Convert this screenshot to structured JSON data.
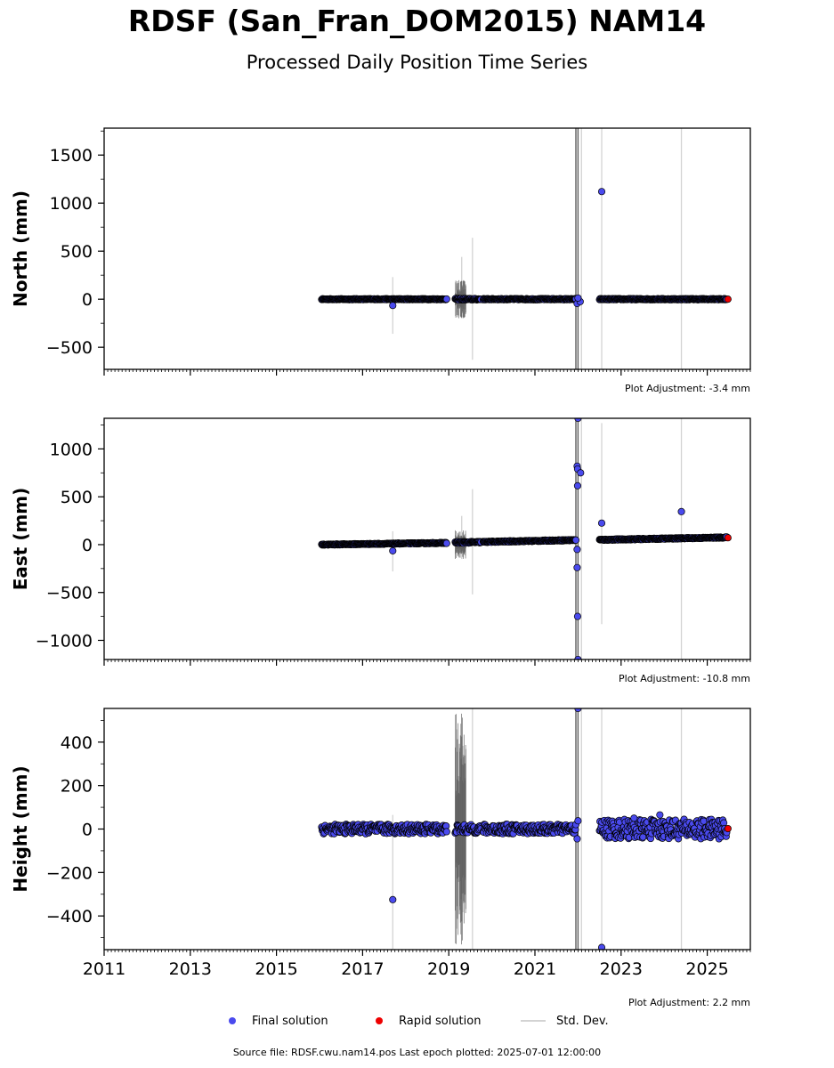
{
  "title": "RDSF (San_Fran_DOM2015) NAM14",
  "subtitle": "Processed Daily Position Time Series",
  "legend": {
    "final_label": "Final solution",
    "rapid_label": "Rapid solution",
    "std_label": "Std. Dev."
  },
  "colors": {
    "final": "#4a4aee",
    "rapid": "#ee0000",
    "std": "#d3d3d3",
    "std_dark": "#606060",
    "marker_edge": "#000000"
  },
  "footer": "Source file: RDSF.cwu.nam14.pos  Last epoch plotted: 2025-07-01 12:00:00",
  "chart_data": [
    {
      "type": "scatter",
      "ylabel": "North (mm)",
      "adjustment": "Plot Adjustment: -3.4 mm",
      "xlim": [
        2011,
        2026
      ],
      "ylim": [
        -730,
        1780
      ],
      "yticks": [
        -500,
        0,
        500,
        1000,
        1500
      ],
      "ytick_labels": [
        "−500",
        "0",
        "500",
        "1000",
        "1500"
      ],
      "xticks": [
        2011,
        2013,
        2015,
        2017,
        2019,
        2021,
        2023,
        2025
      ],
      "xtick_labels": [],
      "series": [
        {
          "name": "Final solution",
          "segments": [
            {
              "x_start": 2016.05,
              "x_end": 2018.95,
              "y_start": 0,
              "y_end": 0,
              "spread": 5
            },
            {
              "x_start": 2019.15,
              "x_end": 2019.75,
              "y_start": 0,
              "y_end": 0,
              "spread": 8
            },
            {
              "x_start": 2019.8,
              "x_end": 2021.95,
              "y_start": 0,
              "y_end": 0,
              "spread": 6
            },
            {
              "x_start": 2022.5,
              "x_end": 2025.45,
              "y_start": 0,
              "y_end": 0,
              "spread": 6
            }
          ],
          "outliers": [
            [
              2017.7,
              -65
            ],
            [
              2022.55,
              1120
            ],
            [
              2021.98,
              -45
            ],
            [
              2022.05,
              -25
            ],
            [
              2022.0,
              12
            ]
          ]
        },
        {
          "name": "Rapid solution",
          "points": [
            [
              2025.48,
              0
            ]
          ]
        }
      ],
      "std_dev": {
        "light": [
          [
            2017.7,
            230,
            -360
          ],
          [
            2019.55,
            640,
            -630
          ],
          [
            2019.3,
            440,
            -200
          ],
          [
            2022.08,
            1780,
            -730
          ],
          [
            2022.55,
            1780,
            -730
          ],
          [
            2024.4,
            1780,
            -730
          ]
        ],
        "dark": [
          [
            2021.95,
            1780,
            -730
          ],
          [
            2022.0,
            1780,
            -730
          ]
        ],
        "cluster": [
          [
            2019.15,
            2019.4,
            200
          ]
        ]
      }
    },
    {
      "type": "scatter",
      "ylabel": "East (mm)",
      "adjustment": "Plot Adjustment: -10.8 mm",
      "xlim": [
        2011,
        2026
      ],
      "ylim": [
        -1200,
        1320
      ],
      "yticks": [
        -1000,
        -500,
        0,
        500,
        1000
      ],
      "ytick_labels": [
        "−1000",
        "−500",
        "0",
        "500",
        "1000"
      ],
      "xticks": [
        2011,
        2013,
        2015,
        2017,
        2019,
        2021,
        2023,
        2025
      ],
      "xtick_labels": [],
      "series": [
        {
          "name": "Final solution",
          "segments": [
            {
              "x_start": 2016.05,
              "x_end": 2018.95,
              "y_start": 0,
              "y_end": 18,
              "spread": 5
            },
            {
              "x_start": 2019.15,
              "x_end": 2019.75,
              "y_start": 22,
              "y_end": 26,
              "spread": 8
            },
            {
              "x_start": 2019.8,
              "x_end": 2021.95,
              "y_start": 28,
              "y_end": 48,
              "spread": 6
            },
            {
              "x_start": 2022.5,
              "x_end": 2025.45,
              "y_start": 50,
              "y_end": 75,
              "spread": 6
            }
          ],
          "outliers": [
            [
              2017.7,
              -65
            ],
            [
              2022.55,
              225
            ],
            [
              2024.4,
              345
            ],
            [
              2021.98,
              820
            ],
            [
              2021.99,
              790
            ],
            [
              2022.06,
              750
            ],
            [
              2021.99,
              615
            ],
            [
              2021.98,
              -50
            ],
            [
              2021.98,
              -240
            ],
            [
              2021.99,
              -750
            ],
            [
              2022.0,
              1320
            ],
            [
              2022.0,
              -1200
            ]
          ]
        },
        {
          "name": "Rapid solution",
          "points": [
            [
              2025.48,
              72
            ]
          ]
        }
      ],
      "std_dev": {
        "light": [
          [
            2017.7,
            140,
            -280
          ],
          [
            2019.55,
            580,
            -520
          ],
          [
            2019.3,
            300,
            -150
          ],
          [
            2022.08,
            1320,
            -1200
          ],
          [
            2022.55,
            1270,
            -830
          ],
          [
            2024.4,
            1320,
            -1200
          ]
        ],
        "dark": [
          [
            2021.95,
            1320,
            -1200
          ],
          [
            2022.0,
            1320,
            -1200
          ]
        ],
        "cluster": [
          [
            2019.15,
            2019.4,
            150
          ]
        ]
      }
    },
    {
      "type": "scatter",
      "ylabel": "Height (mm)",
      "adjustment": "Plot Adjustment: 2.2 mm",
      "xlim": [
        2011,
        2026
      ],
      "ylim": [
        -555,
        555
      ],
      "yticks": [
        -400,
        -200,
        0,
        200,
        400
      ],
      "ytick_labels": [
        "−400",
        "−200",
        "0",
        "200",
        "400"
      ],
      "xticks": [
        2011,
        2013,
        2015,
        2017,
        2019,
        2021,
        2023,
        2025
      ],
      "xtick_labels": [
        "2011",
        "2013",
        "2015",
        "2017",
        "2019",
        "2021",
        "2023",
        "2025"
      ],
      "series": [
        {
          "name": "Final solution",
          "segments": [
            {
              "x_start": 2016.05,
              "x_end": 2018.95,
              "y_start": 0,
              "y_end": 0,
              "spread": 22
            },
            {
              "x_start": 2019.15,
              "x_end": 2019.75,
              "y_start": 0,
              "y_end": 0,
              "spread": 20
            },
            {
              "x_start": 2019.8,
              "x_end": 2021.95,
              "y_start": 0,
              "y_end": 0,
              "spread": 22
            },
            {
              "x_start": 2022.5,
              "x_end": 2025.45,
              "y_start": 0,
              "y_end": 0,
              "spread": 45
            }
          ],
          "outliers": [
            [
              2017.7,
              -325
            ],
            [
              2022.0,
              555
            ],
            [
              2022.55,
              -545
            ],
            [
              2023.9,
              65
            ],
            [
              2023.3,
              50
            ],
            [
              2021.98,
              -45
            ],
            [
              2022.0,
              38
            ]
          ]
        },
        {
          "name": "Rapid solution",
          "points": [
            [
              2025.48,
              2
            ]
          ]
        }
      ],
      "std_dev": {
        "light": [
          [
            2017.7,
            65,
            -555
          ],
          [
            2019.55,
            555,
            -555
          ],
          [
            2022.08,
            555,
            -555
          ],
          [
            2022.55,
            555,
            -555
          ],
          [
            2024.4,
            555,
            -555
          ]
        ],
        "dark": [
          [
            2021.95,
            555,
            -555
          ],
          [
            2022.0,
            555,
            -555
          ]
        ],
        "cluster": [
          [
            2019.15,
            2019.4,
            555
          ]
        ]
      }
    }
  ]
}
